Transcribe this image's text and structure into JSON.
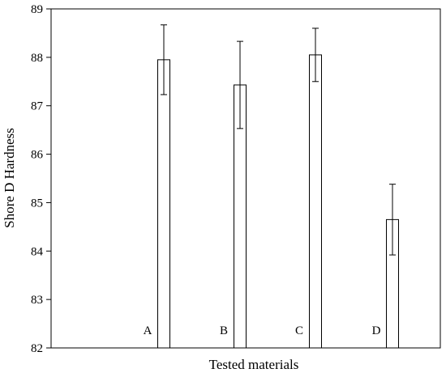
{
  "chart_data": {
    "type": "bar",
    "title": "",
    "xlabel": "Tested materials",
    "ylabel": "Shore D Hardness",
    "ylim": [
      82,
      89
    ],
    "yticks": [
      82,
      83,
      84,
      85,
      86,
      87,
      88,
      89
    ],
    "categories": [
      "A",
      "B",
      "C",
      "D"
    ],
    "values": [
      87.95,
      87.43,
      88.05,
      84.65
    ],
    "errors": [
      0.72,
      0.9,
      0.55,
      0.73
    ],
    "grid": false,
    "legend": "none",
    "colors": {
      "bar_fill": "#ffffff",
      "bar_stroke": "#000000",
      "axis": "#000000"
    }
  }
}
